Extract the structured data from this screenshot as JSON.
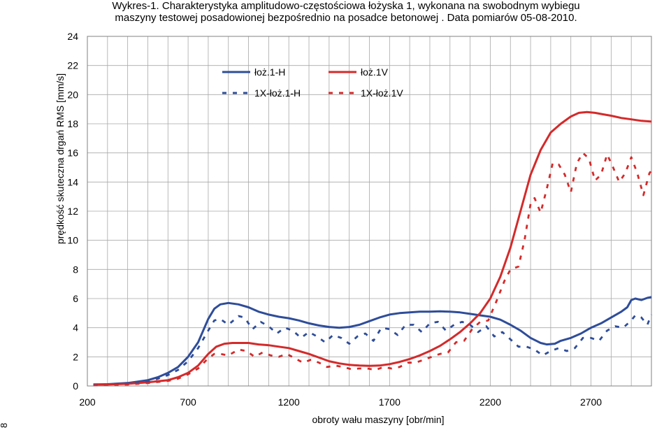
{
  "chart_data": {
    "type": "line",
    "title_line1": "Wykres-1. Charakterystyka amplitudowo-częstościowa łożyska 1, wykonana na swobodnym wybiegu",
    "title_line2": "maszyny testowej posadowionej bezpośrednio na posadce betonowej . Data pomiarów 05-08-2010.",
    "xlabel": "obroty wału maszyny [obr/min]",
    "ylabel": "prędkość skuteczna drgań RMS [mm/s]",
    "xlim": [
      200,
      3000
    ],
    "ylim": [
      0,
      24
    ],
    "xticks": [
      200,
      700,
      1200,
      1700,
      2200,
      2700
    ],
    "yticks": [
      0,
      2,
      4,
      6,
      8,
      10,
      12,
      14,
      16,
      18,
      20,
      22,
      24
    ],
    "grid": true,
    "legend_position": "top-center",
    "series": [
      {
        "name": "łoż.1-H",
        "color": "#2e4d9a",
        "dash": "solid",
        "points": [
          [
            230,
            0.1
          ],
          [
            300,
            0.12
          ],
          [
            400,
            0.2
          ],
          [
            500,
            0.4
          ],
          [
            550,
            0.6
          ],
          [
            600,
            0.9
          ],
          [
            650,
            1.3
          ],
          [
            700,
            2.0
          ],
          [
            750,
            3.0
          ],
          [
            800,
            4.6
          ],
          [
            830,
            5.3
          ],
          [
            860,
            5.6
          ],
          [
            900,
            5.7
          ],
          [
            950,
            5.6
          ],
          [
            1000,
            5.4
          ],
          [
            1050,
            5.1
          ],
          [
            1100,
            4.9
          ],
          [
            1150,
            4.75
          ],
          [
            1200,
            4.65
          ],
          [
            1250,
            4.5
          ],
          [
            1300,
            4.3
          ],
          [
            1350,
            4.15
          ],
          [
            1400,
            4.05
          ],
          [
            1450,
            4.0
          ],
          [
            1500,
            4.05
          ],
          [
            1550,
            4.2
          ],
          [
            1600,
            4.45
          ],
          [
            1650,
            4.7
          ],
          [
            1700,
            4.9
          ],
          [
            1750,
            5.0
          ],
          [
            1800,
            5.05
          ],
          [
            1850,
            5.1
          ],
          [
            1900,
            5.1
          ],
          [
            1950,
            5.12
          ],
          [
            2000,
            5.1
          ],
          [
            2050,
            5.05
          ],
          [
            2100,
            4.95
          ],
          [
            2150,
            4.85
          ],
          [
            2200,
            4.75
          ],
          [
            2250,
            4.55
          ],
          [
            2300,
            4.2
          ],
          [
            2350,
            3.8
          ],
          [
            2400,
            3.3
          ],
          [
            2450,
            2.95
          ],
          [
            2480,
            2.85
          ],
          [
            2520,
            2.9
          ],
          [
            2550,
            3.1
          ],
          [
            2600,
            3.3
          ],
          [
            2650,
            3.6
          ],
          [
            2700,
            4.0
          ],
          [
            2750,
            4.3
          ],
          [
            2800,
            4.7
          ],
          [
            2850,
            5.1
          ],
          [
            2880,
            5.4
          ],
          [
            2900,
            5.9
          ],
          [
            2920,
            6.0
          ],
          [
            2950,
            5.9
          ],
          [
            2980,
            6.05
          ],
          [
            3000,
            6.1
          ]
        ]
      },
      {
        "name": "łoż.1V",
        "color": "#d42a2a",
        "dash": "solid",
        "points": [
          [
            230,
            0.1
          ],
          [
            300,
            0.1
          ],
          [
            400,
            0.15
          ],
          [
            500,
            0.25
          ],
          [
            600,
            0.4
          ],
          [
            650,
            0.6
          ],
          [
            700,
            0.9
          ],
          [
            750,
            1.4
          ],
          [
            800,
            2.2
          ],
          [
            840,
            2.7
          ],
          [
            880,
            2.9
          ],
          [
            920,
            2.95
          ],
          [
            1000,
            2.95
          ],
          [
            1050,
            2.85
          ],
          [
            1100,
            2.8
          ],
          [
            1150,
            2.7
          ],
          [
            1200,
            2.6
          ],
          [
            1250,
            2.4
          ],
          [
            1300,
            2.2
          ],
          [
            1350,
            1.95
          ],
          [
            1400,
            1.7
          ],
          [
            1450,
            1.55
          ],
          [
            1500,
            1.45
          ],
          [
            1550,
            1.4
          ],
          [
            1600,
            1.38
          ],
          [
            1650,
            1.4
          ],
          [
            1700,
            1.5
          ],
          [
            1750,
            1.65
          ],
          [
            1800,
            1.85
          ],
          [
            1850,
            2.1
          ],
          [
            1900,
            2.4
          ],
          [
            1950,
            2.75
          ],
          [
            2000,
            3.2
          ],
          [
            2050,
            3.7
          ],
          [
            2100,
            4.3
          ],
          [
            2150,
            5.0
          ],
          [
            2200,
            6.0
          ],
          [
            2250,
            7.5
          ],
          [
            2300,
            9.5
          ],
          [
            2350,
            12.0
          ],
          [
            2400,
            14.5
          ],
          [
            2450,
            16.2
          ],
          [
            2500,
            17.4
          ],
          [
            2550,
            18.0
          ],
          [
            2600,
            18.5
          ],
          [
            2640,
            18.75
          ],
          [
            2680,
            18.8
          ],
          [
            2720,
            18.75
          ],
          [
            2760,
            18.65
          ],
          [
            2800,
            18.55
          ],
          [
            2850,
            18.4
          ],
          [
            2900,
            18.3
          ],
          [
            2950,
            18.2
          ],
          [
            3000,
            18.15
          ]
        ]
      },
      {
        "name": "1X-łoż.1-H",
        "color": "#2e4d9a",
        "dash": "dashed",
        "points": [
          [
            230,
            0.08
          ],
          [
            300,
            0.1
          ],
          [
            400,
            0.15
          ],
          [
            500,
            0.3
          ],
          [
            550,
            0.5
          ],
          [
            600,
            0.75
          ],
          [
            650,
            1.1
          ],
          [
            700,
            1.7
          ],
          [
            750,
            2.6
          ],
          [
            800,
            3.8
          ],
          [
            830,
            4.5
          ],
          [
            860,
            4.6
          ],
          [
            900,
            4.2
          ],
          [
            950,
            4.8
          ],
          [
            980,
            4.7
          ],
          [
            1020,
            3.9
          ],
          [
            1060,
            4.4
          ],
          [
            1100,
            4.1
          ],
          [
            1140,
            3.6
          ],
          [
            1180,
            4.0
          ],
          [
            1220,
            3.8
          ],
          [
            1260,
            3.3
          ],
          [
            1300,
            3.7
          ],
          [
            1340,
            3.4
          ],
          [
            1380,
            3.0
          ],
          [
            1420,
            3.5
          ],
          [
            1460,
            3.3
          ],
          [
            1500,
            2.9
          ],
          [
            1540,
            3.4
          ],
          [
            1580,
            3.6
          ],
          [
            1620,
            3.1
          ],
          [
            1660,
            4.0
          ],
          [
            1700,
            3.9
          ],
          [
            1740,
            3.5
          ],
          [
            1780,
            4.2
          ],
          [
            1820,
            4.2
          ],
          [
            1860,
            3.7
          ],
          [
            1900,
            4.3
          ],
          [
            1940,
            4.4
          ],
          [
            1980,
            3.8
          ],
          [
            2020,
            4.2
          ],
          [
            2060,
            4.4
          ],
          [
            2100,
            4.2
          ],
          [
            2140,
            3.7
          ],
          [
            2180,
            4.1
          ],
          [
            2220,
            3.4
          ],
          [
            2260,
            3.7
          ],
          [
            2300,
            3.2
          ],
          [
            2340,
            2.7
          ],
          [
            2380,
            2.7
          ],
          [
            2420,
            2.5
          ],
          [
            2460,
            2.1
          ],
          [
            2500,
            2.4
          ],
          [
            2540,
            2.6
          ],
          [
            2580,
            2.4
          ],
          [
            2620,
            2.6
          ],
          [
            2660,
            3.3
          ],
          [
            2700,
            3.3
          ],
          [
            2740,
            3.1
          ],
          [
            2780,
            3.8
          ],
          [
            2820,
            4.1
          ],
          [
            2860,
            4.0
          ],
          [
            2900,
            4.5
          ],
          [
            2920,
            4.85
          ],
          [
            2950,
            4.7
          ],
          [
            2980,
            4.2
          ],
          [
            3000,
            4.9
          ]
        ]
      },
      {
        "name": "1X-łoż.1V",
        "color": "#d42a2a",
        "dash": "dashed",
        "points": [
          [
            230,
            0.05
          ],
          [
            300,
            0.08
          ],
          [
            400,
            0.1
          ],
          [
            500,
            0.2
          ],
          [
            600,
            0.35
          ],
          [
            650,
            0.5
          ],
          [
            700,
            0.8
          ],
          [
            750,
            1.2
          ],
          [
            800,
            1.9
          ],
          [
            830,
            2.2
          ],
          [
            860,
            2.2
          ],
          [
            900,
            2.1
          ],
          [
            950,
            2.5
          ],
          [
            990,
            2.4
          ],
          [
            1030,
            2.0
          ],
          [
            1070,
            2.3
          ],
          [
            1110,
            2.1
          ],
          [
            1150,
            2.0
          ],
          [
            1190,
            2.2
          ],
          [
            1230,
            1.9
          ],
          [
            1270,
            1.6
          ],
          [
            1310,
            1.8
          ],
          [
            1350,
            1.6
          ],
          [
            1390,
            1.3
          ],
          [
            1430,
            1.4
          ],
          [
            1470,
            1.3
          ],
          [
            1510,
            1.15
          ],
          [
            1550,
            1.2
          ],
          [
            1590,
            1.2
          ],
          [
            1630,
            1.1
          ],
          [
            1670,
            1.3
          ],
          [
            1710,
            1.2
          ],
          [
            1750,
            1.3
          ],
          [
            1790,
            1.6
          ],
          [
            1830,
            1.6
          ],
          [
            1870,
            1.8
          ],
          [
            1910,
            2.0
          ],
          [
            1950,
            2.2
          ],
          [
            1990,
            2.3
          ],
          [
            2030,
            3.0
          ],
          [
            2070,
            3.1
          ],
          [
            2110,
            3.9
          ],
          [
            2150,
            4.4
          ],
          [
            2190,
            4.5
          ],
          [
            2230,
            5.8
          ],
          [
            2270,
            7.2
          ],
          [
            2300,
            8.0
          ],
          [
            2340,
            8.2
          ],
          [
            2370,
            10.0
          ],
          [
            2400,
            12.5
          ],
          [
            2420,
            12.9
          ],
          [
            2450,
            11.9
          ],
          [
            2480,
            13.5
          ],
          [
            2510,
            15.3
          ],
          [
            2540,
            15.2
          ],
          [
            2570,
            14.5
          ],
          [
            2600,
            13.3
          ],
          [
            2630,
            15.3
          ],
          [
            2660,
            16.0
          ],
          [
            2690,
            15.6
          ],
          [
            2720,
            14.1
          ],
          [
            2750,
            14.5
          ],
          [
            2780,
            15.9
          ],
          [
            2810,
            15.0
          ],
          [
            2840,
            14.0
          ],
          [
            2870,
            14.6
          ],
          [
            2900,
            15.7
          ],
          [
            2930,
            14.6
          ],
          [
            2960,
            13.1
          ],
          [
            2990,
            14.6
          ],
          [
            3000,
            14.8
          ]
        ]
      }
    ]
  },
  "page": {
    "side_number": "8"
  }
}
